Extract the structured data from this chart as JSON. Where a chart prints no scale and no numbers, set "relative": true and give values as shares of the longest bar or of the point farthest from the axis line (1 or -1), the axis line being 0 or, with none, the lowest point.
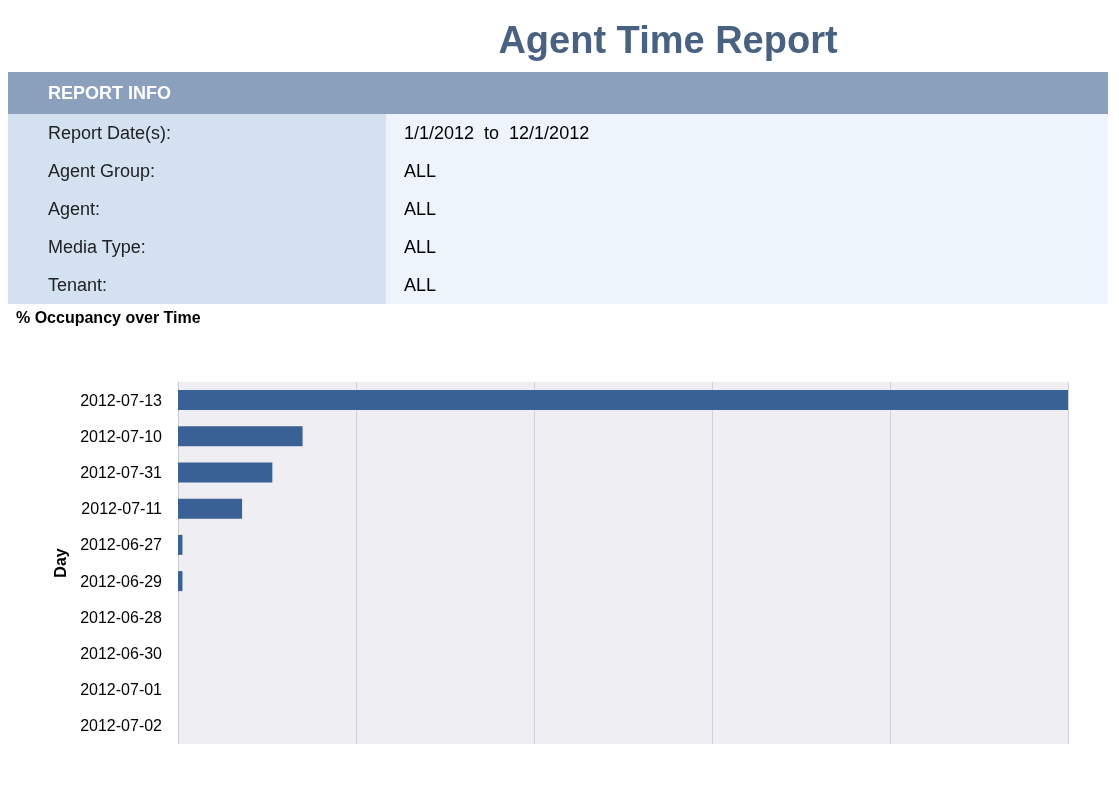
{
  "chart_data": [
    {
      "type": "other",
      "title": "Agent Time Report",
      "annotations": [
        "REPORT INFO",
        "Report Date(s):",
        "1/1/2012  to  12/1/2012",
        "Agent Group:",
        "ALL",
        "Agent:",
        "ALL",
        "Media Type:",
        "ALL",
        "Tenant:",
        "ALL"
      ]
    },
    {
      "type": "bar",
      "orientation": "horizontal",
      "relative": true,
      "title": "% Occupancy over Time",
      "ylabel": "Day",
      "color": "#3a6195",
      "grid": "x",
      "categories": [
        "2012-07-13",
        "2012-07-10",
        "2012-07-31",
        "2012-07-11",
        "2012-06-27",
        "2012-06-29",
        "2012-06-28",
        "2012-06-30",
        "2012-07-01",
        "2012-07-02"
      ],
      "values": [
        1,
        0.14,
        0.106,
        0.072,
        0.005,
        0.005,
        0,
        0,
        0,
        0
      ]
    }
  ]
}
